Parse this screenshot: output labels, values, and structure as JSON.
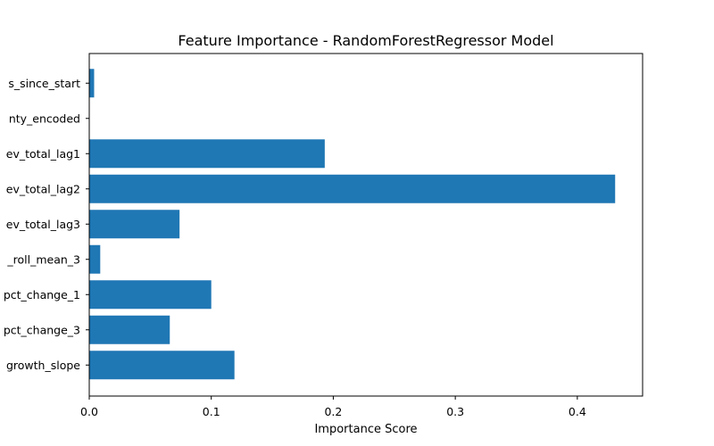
{
  "chart_data": {
    "type": "bar",
    "orientation": "horizontal",
    "title": "Feature Importance - RandomForestRegressor Model",
    "xlabel": "Importance Score",
    "ylabel": "",
    "categories": [
      "s_since_start",
      "nty_encoded",
      "ev_total_lag1",
      "ev_total_lag2",
      "ev_total_lag3",
      "_roll_mean_3",
      "pct_change_1",
      "pct_change_3",
      "growth_slope"
    ],
    "values": [
      0.004,
      0.0,
      0.193,
      0.431,
      0.074,
      0.009,
      0.1,
      0.066,
      0.119
    ],
    "xlim": [
      0,
      0.4535
    ],
    "xticks": [
      0.0,
      0.1,
      0.2,
      0.3,
      0.4
    ],
    "xtick_labels": [
      "0.0",
      "0.1",
      "0.2",
      "0.3",
      "0.4"
    ],
    "grid": false,
    "legend": "none",
    "bar_color": "#1f77b4"
  }
}
